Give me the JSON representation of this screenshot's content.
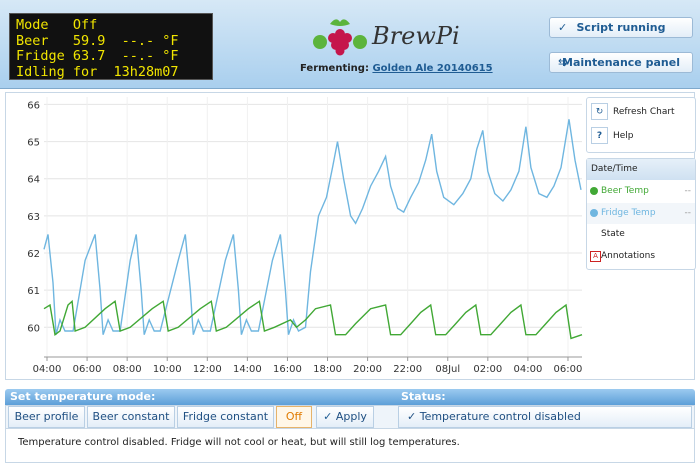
{
  "lcd": {
    "lines": [
      "Mode   Off",
      "Beer   59.9  --.- °F",
      "Fridge 63.7  --.- °F",
      "Idling for  13h28m07"
    ]
  },
  "logo": {
    "text": "BrewPi"
  },
  "fermenting": {
    "label": "Fermenting:",
    "beer_name": "Golden Ale 20140615"
  },
  "header_buttons": [
    "Script running",
    "Maintenance panel"
  ],
  "chart_data": {
    "type": "line",
    "xlim": [
      -0.15,
      26.7
    ],
    "ylim": [
      59.2,
      66.2
    ],
    "xticks": [
      {
        "value": 0,
        "label": "04:00"
      },
      {
        "value": 2,
        "label": "06:00"
      },
      {
        "value": 4,
        "label": "08:00"
      },
      {
        "value": 6,
        "label": "10:00"
      },
      {
        "value": 8,
        "label": "12:00"
      },
      {
        "value": 10,
        "label": "14:00"
      },
      {
        "value": 12,
        "label": "16:00"
      },
      {
        "value": 14,
        "label": "18:00"
      },
      {
        "value": 16,
        "label": "20:00"
      },
      {
        "value": 18,
        "label": "22:00"
      },
      {
        "value": 20,
        "label": "08Jul"
      },
      {
        "value": 22,
        "label": "02:00"
      },
      {
        "value": 24,
        "label": "04:00"
      },
      {
        "value": 26,
        "label": "06:00"
      }
    ],
    "yticks": [
      60,
      61,
      62,
      63,
      64,
      65,
      66
    ],
    "grid": true,
    "series": [
      {
        "name": "Beer Temp",
        "color": "#41a835",
        "x": [
          -0.15,
          0.15,
          0.4,
          0.65,
          1.05,
          1.25,
          1.4,
          1.9,
          2.9,
          3.4,
          3.65,
          4.15,
          5.25,
          5.8,
          6.05,
          6.55,
          7.65,
          8.2,
          8.45,
          8.95,
          10.05,
          10.6,
          10.85,
          11.35,
          12.15,
          12.45,
          12.9,
          13.4,
          14.15,
          14.4,
          14.9,
          15.4,
          16.15,
          16.9,
          17.15,
          17.65,
          18.15,
          18.65,
          19.15,
          19.4,
          19.9,
          20.4,
          20.9,
          21.4,
          21.65,
          22.15,
          22.65,
          23.15,
          23.65,
          23.9,
          24.4,
          24.9,
          25.4,
          25.9,
          26.15,
          26.7
        ],
        "values": [
          60.5,
          60.6,
          59.8,
          59.9,
          60.6,
          60.7,
          59.9,
          60.0,
          60.5,
          60.7,
          59.9,
          60.0,
          60.5,
          60.7,
          59.9,
          60.0,
          60.5,
          60.7,
          59.9,
          60.0,
          60.5,
          60.7,
          59.9,
          60.0,
          60.2,
          60.0,
          60.2,
          60.5,
          60.6,
          59.8,
          59.8,
          60.1,
          60.5,
          60.6,
          59.8,
          59.8,
          60.1,
          60.4,
          60.6,
          59.8,
          59.8,
          60.1,
          60.4,
          60.6,
          59.8,
          59.8,
          60.1,
          60.4,
          60.6,
          59.8,
          59.8,
          60.1,
          60.4,
          60.6,
          59.7,
          59.8
        ]
      },
      {
        "name": "Fridge Temp",
        "color": "#6fb6e0",
        "x": [
          -0.15,
          0.05,
          0.3,
          0.45,
          0.65,
          0.9,
          1.3,
          1.9,
          2.4,
          2.65,
          2.8,
          3.05,
          3.3,
          3.65,
          4.15,
          4.45,
          4.7,
          4.85,
          5.1,
          5.35,
          5.65,
          6.55,
          6.9,
          7.15,
          7.3,
          7.55,
          7.8,
          8.15,
          8.9,
          9.3,
          9.55,
          9.7,
          9.95,
          10.2,
          10.55,
          11.25,
          11.65,
          11.9,
          12.05,
          12.3,
          12.55,
          12.9,
          13.15,
          13.55,
          13.95,
          14.25,
          14.5,
          14.8,
          15.15,
          15.4,
          15.75,
          16.15,
          16.55,
          16.9,
          17.15,
          17.5,
          17.8,
          18.15,
          18.55,
          18.9,
          19.2,
          19.45,
          19.8,
          20.3,
          20.75,
          21.15,
          21.45,
          21.75,
          22,
          22.35,
          22.75,
          23.15,
          23.55,
          23.9,
          24.15,
          24.55,
          24.95,
          25.3,
          25.65,
          26.05,
          26.35,
          26.65
        ],
        "values": [
          62.1,
          62.5,
          61.2,
          59.8,
          60.2,
          59.9,
          59.9,
          61.8,
          62.5,
          61,
          59.8,
          60.2,
          59.9,
          59.9,
          61.8,
          62.5,
          61,
          59.8,
          60.2,
          59.9,
          59.9,
          61.8,
          62.5,
          61,
          59.8,
          60.2,
          59.9,
          59.9,
          61.8,
          62.5,
          61,
          59.8,
          60.2,
          59.9,
          59.9,
          61.8,
          62.5,
          61,
          59.8,
          60.2,
          59.9,
          60,
          61.5,
          63,
          63.5,
          64.3,
          65,
          64,
          63,
          62.8,
          63.2,
          63.8,
          64.2,
          64.6,
          63.8,
          63.2,
          63.1,
          63.5,
          63.9,
          64.5,
          65.2,
          64.2,
          63.5,
          63.3,
          63.6,
          64,
          64.8,
          65.3,
          64.2,
          63.6,
          63.4,
          63.7,
          64.2,
          65.4,
          64.3,
          63.6,
          63.5,
          63.8,
          64.3,
          65.6,
          64.5,
          63.7
        ]
      }
    ]
  },
  "chart_tools": [
    {
      "label": "Refresh Chart"
    },
    {
      "icon": "?",
      "label": "Help"
    }
  ],
  "legend": {
    "header": "Date/Time",
    "values": [
      "--",
      "--"
    ],
    "extras": [
      "State",
      "Annotations"
    ],
    "annotation_icon": "A"
  },
  "control": {
    "mode_title": "Set temperature mode:",
    "modes": [
      "Beer profile",
      "Beer constant",
      "Fridge constant",
      "Off"
    ],
    "apply": "Apply",
    "status_title": "Status:",
    "status": "Temperature control disabled",
    "message": "Temperature control disabled. Fridge will not cool or heat, but will still log temperatures."
  }
}
